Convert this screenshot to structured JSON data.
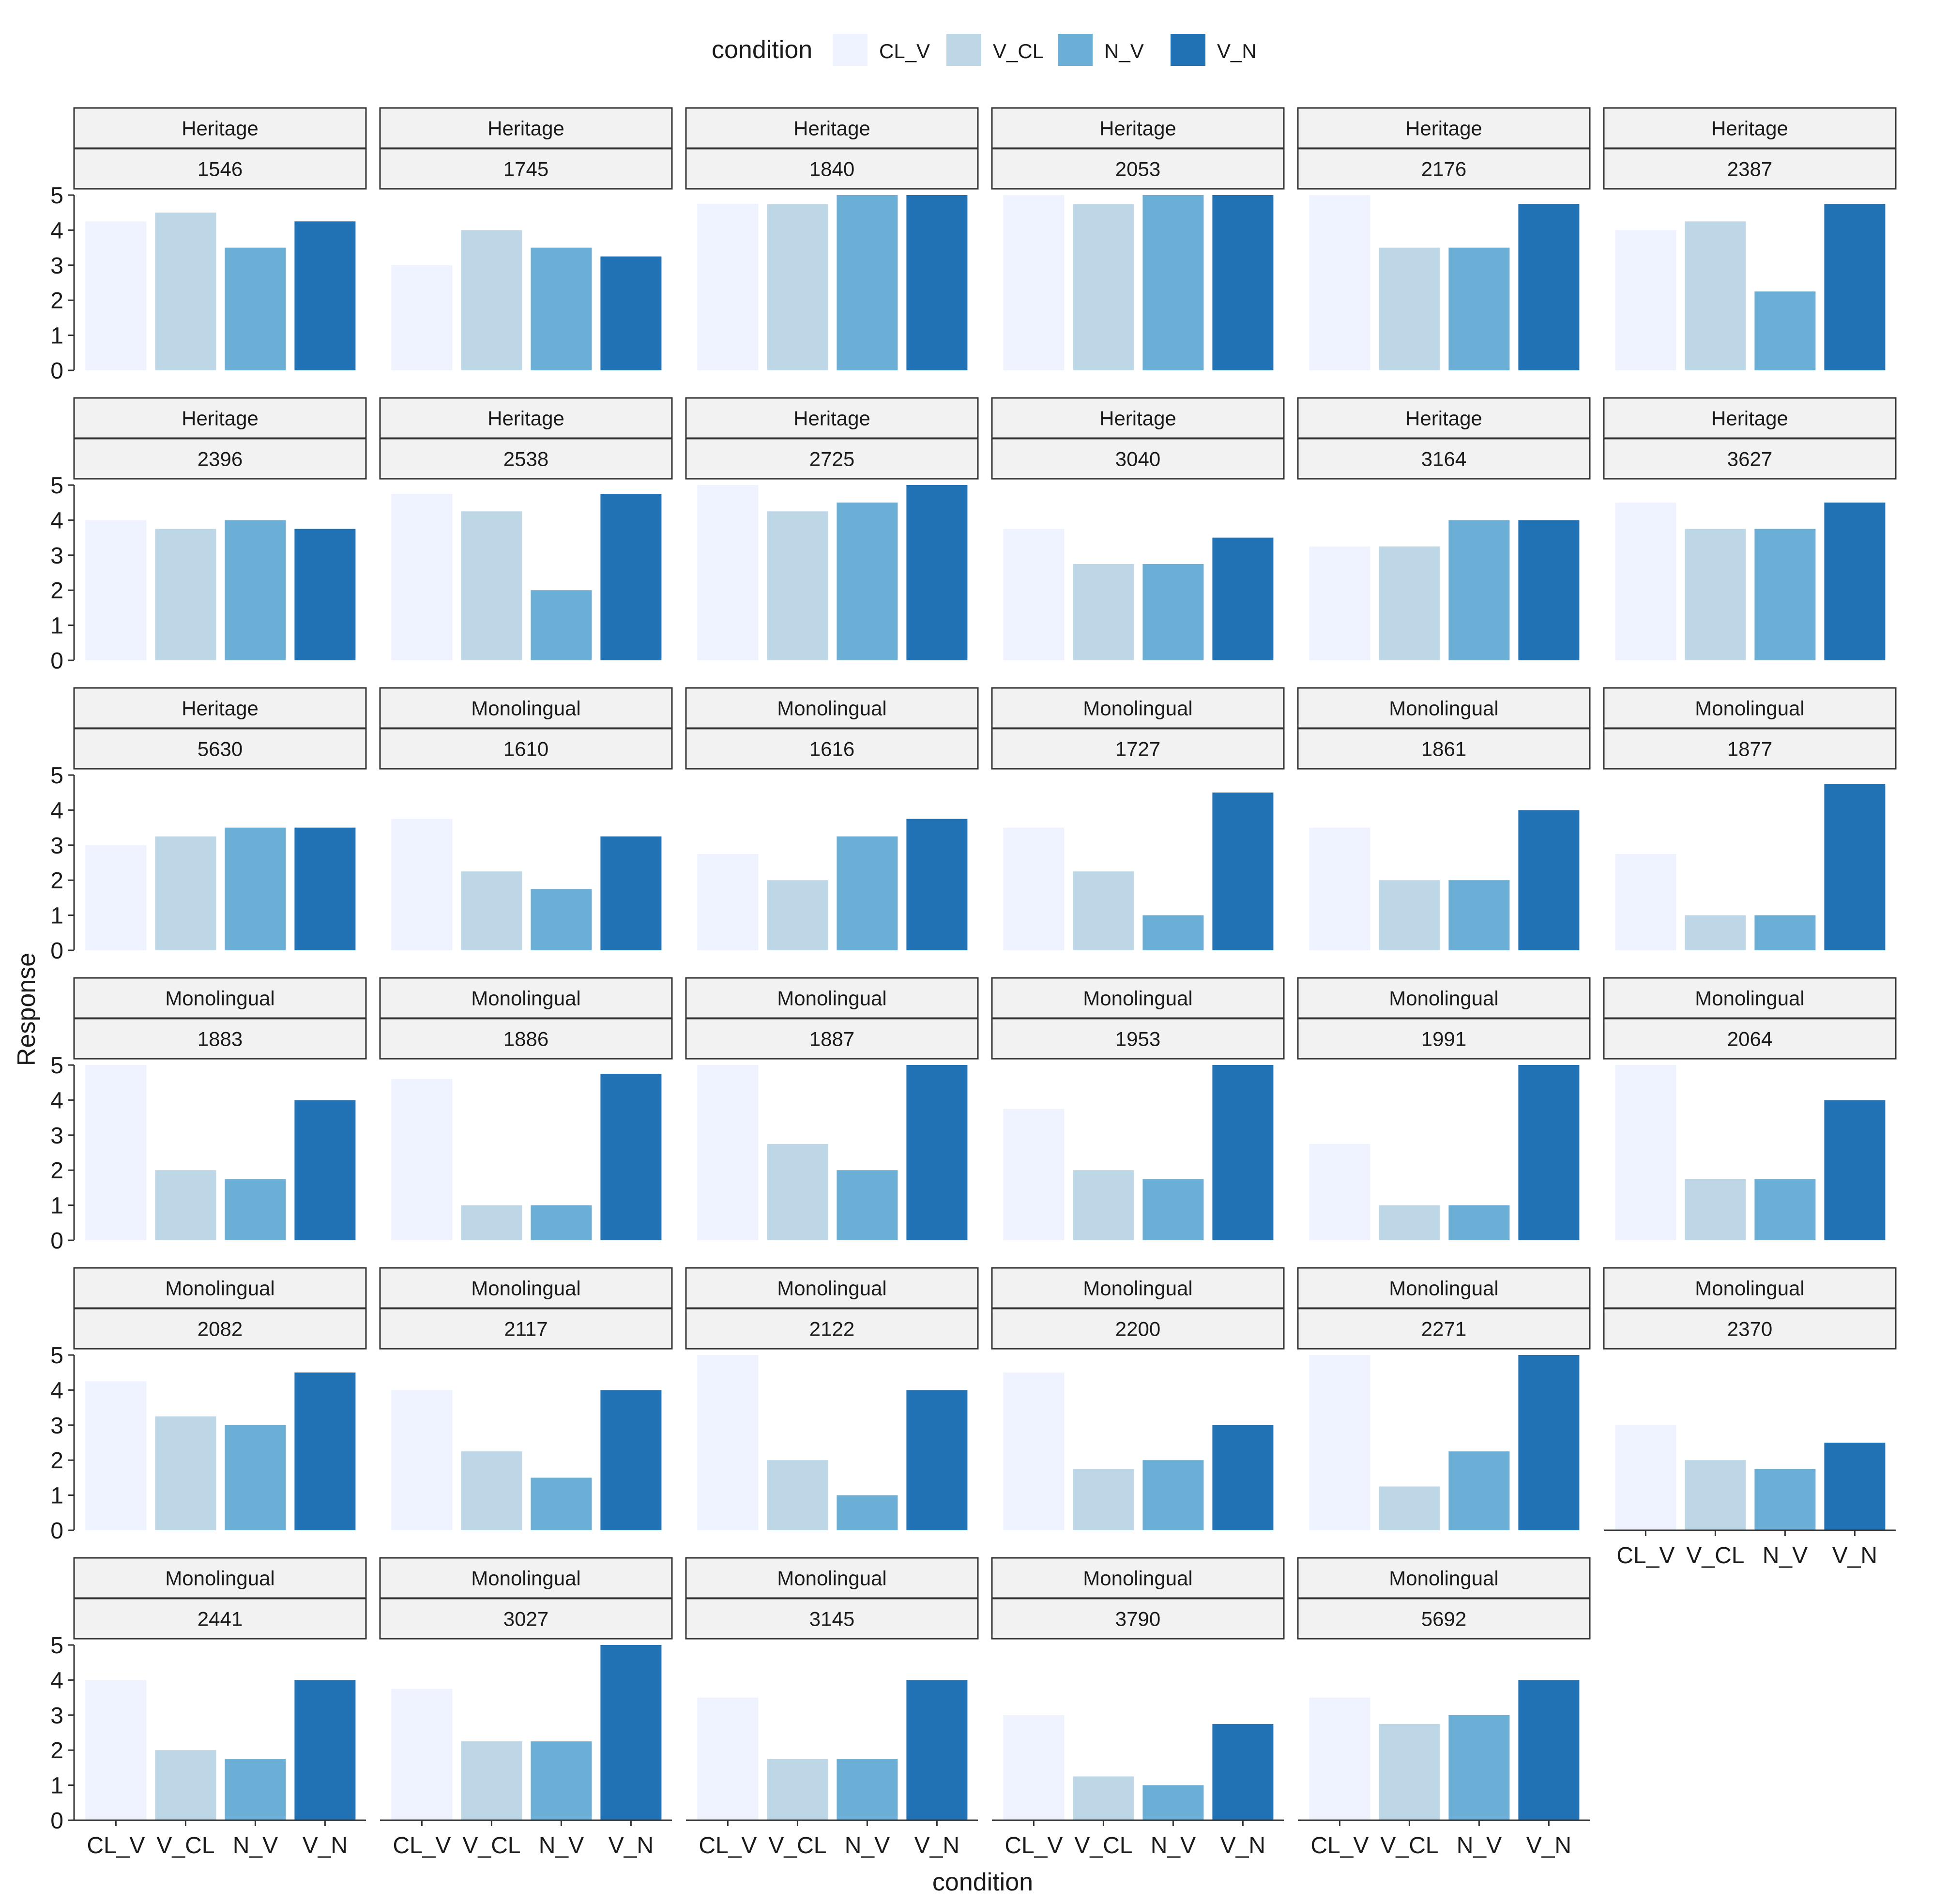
{
  "chart_data": {
    "type": "bar",
    "facet_layout": "wrap",
    "categories": [
      "CL_V",
      "V_CL",
      "N_V",
      "V_N"
    ],
    "colors": {
      "CL_V": "#EFF3FF",
      "V_CL": "#BDD7E7",
      "N_V": "#6BAED6",
      "V_N": "#2171B5"
    },
    "strip_fill": "#F2F2F2",
    "legend": {
      "title": "condition",
      "entries": [
        "CL_V",
        "V_CL",
        "N_V",
        "V_N"
      ],
      "position": "top"
    },
    "xlabel": "condition",
    "ylabel": "Response",
    "ylim": [
      0,
      5
    ],
    "yticks": [
      "0",
      "1",
      "2",
      "3",
      "4",
      "5"
    ],
    "panels": [
      {
        "group": "Heritage",
        "id": "1546",
        "values": [
          4.25,
          4.5,
          3.5,
          4.25
        ]
      },
      {
        "group": "Heritage",
        "id": "1745",
        "values": [
          3.0,
          4.0,
          3.5,
          3.25
        ]
      },
      {
        "group": "Heritage",
        "id": "1840",
        "values": [
          4.75,
          4.75,
          5.0,
          5.0
        ]
      },
      {
        "group": "Heritage",
        "id": "2053",
        "values": [
          5.0,
          4.75,
          5.0,
          5.0
        ]
      },
      {
        "group": "Heritage",
        "id": "2176",
        "values": [
          5.0,
          3.5,
          3.5,
          4.75
        ]
      },
      {
        "group": "Heritage",
        "id": "2387",
        "values": [
          4.0,
          4.25,
          2.25,
          4.75
        ]
      },
      {
        "group": "Heritage",
        "id": "2396",
        "values": [
          4.0,
          3.75,
          4.0,
          3.75
        ]
      },
      {
        "group": "Heritage",
        "id": "2538",
        "values": [
          4.75,
          4.25,
          2.0,
          4.75
        ]
      },
      {
        "group": "Heritage",
        "id": "2725",
        "values": [
          5.0,
          4.25,
          4.5,
          5.0
        ]
      },
      {
        "group": "Heritage",
        "id": "3040",
        "values": [
          3.75,
          2.75,
          2.75,
          3.5
        ]
      },
      {
        "group": "Heritage",
        "id": "3164",
        "values": [
          3.25,
          3.25,
          4.0,
          4.0
        ]
      },
      {
        "group": "Heritage",
        "id": "3627",
        "values": [
          4.5,
          3.75,
          3.75,
          4.5
        ]
      },
      {
        "group": "Heritage",
        "id": "5630",
        "values": [
          3.0,
          3.25,
          3.5,
          3.5
        ]
      },
      {
        "group": "Monolingual",
        "id": "1610",
        "values": [
          3.75,
          2.25,
          1.75,
          3.25
        ]
      },
      {
        "group": "Monolingual",
        "id": "1616",
        "values": [
          2.75,
          2.0,
          3.25,
          3.75
        ]
      },
      {
        "group": "Monolingual",
        "id": "1727",
        "values": [
          3.5,
          2.25,
          1.0,
          4.5
        ]
      },
      {
        "group": "Monolingual",
        "id": "1861",
        "values": [
          3.5,
          2.0,
          2.0,
          4.0
        ]
      },
      {
        "group": "Monolingual",
        "id": "1877",
        "values": [
          2.75,
          1.0,
          1.0,
          4.75
        ]
      },
      {
        "group": "Monolingual",
        "id": "1883",
        "values": [
          5.0,
          2.0,
          1.75,
          4.0
        ]
      },
      {
        "group": "Monolingual",
        "id": "1886",
        "values": [
          4.6,
          1.0,
          1.0,
          4.75
        ]
      },
      {
        "group": "Monolingual",
        "id": "1887",
        "values": [
          5.0,
          2.75,
          2.0,
          5.0
        ]
      },
      {
        "group": "Monolingual",
        "id": "1953",
        "values": [
          3.75,
          2.0,
          1.75,
          5.0
        ]
      },
      {
        "group": "Monolingual",
        "id": "1991",
        "values": [
          2.75,
          1.0,
          1.0,
          5.0
        ]
      },
      {
        "group": "Monolingual",
        "id": "2064",
        "values": [
          5.0,
          1.75,
          1.75,
          4.0
        ]
      },
      {
        "group": "Monolingual",
        "id": "2082",
        "values": [
          4.25,
          3.25,
          3.0,
          4.5
        ]
      },
      {
        "group": "Monolingual",
        "id": "2117",
        "values": [
          4.0,
          2.25,
          1.5,
          4.0
        ]
      },
      {
        "group": "Monolingual",
        "id": "2122",
        "values": [
          5.0,
          2.0,
          1.0,
          4.0
        ]
      },
      {
        "group": "Monolingual",
        "id": "2200",
        "values": [
          4.5,
          1.75,
          2.0,
          3.0
        ]
      },
      {
        "group": "Monolingual",
        "id": "2271",
        "values": [
          5.0,
          1.25,
          2.25,
          5.0
        ]
      },
      {
        "group": "Monolingual",
        "id": "2370",
        "values": [
          3.0,
          2.0,
          1.75,
          2.5
        ]
      },
      {
        "group": "Monolingual",
        "id": "2441",
        "values": [
          4.0,
          2.0,
          1.75,
          4.0
        ]
      },
      {
        "group": "Monolingual",
        "id": "3027",
        "values": [
          3.75,
          2.25,
          2.25,
          5.0
        ]
      },
      {
        "group": "Monolingual",
        "id": "3145",
        "values": [
          3.5,
          1.75,
          1.75,
          4.0
        ]
      },
      {
        "group": "Monolingual",
        "id": "3790",
        "values": [
          3.0,
          1.25,
          1.0,
          2.75
        ]
      },
      {
        "group": "Monolingual",
        "id": "5692",
        "values": [
          3.5,
          2.75,
          3.0,
          4.0
        ]
      }
    ]
  }
}
